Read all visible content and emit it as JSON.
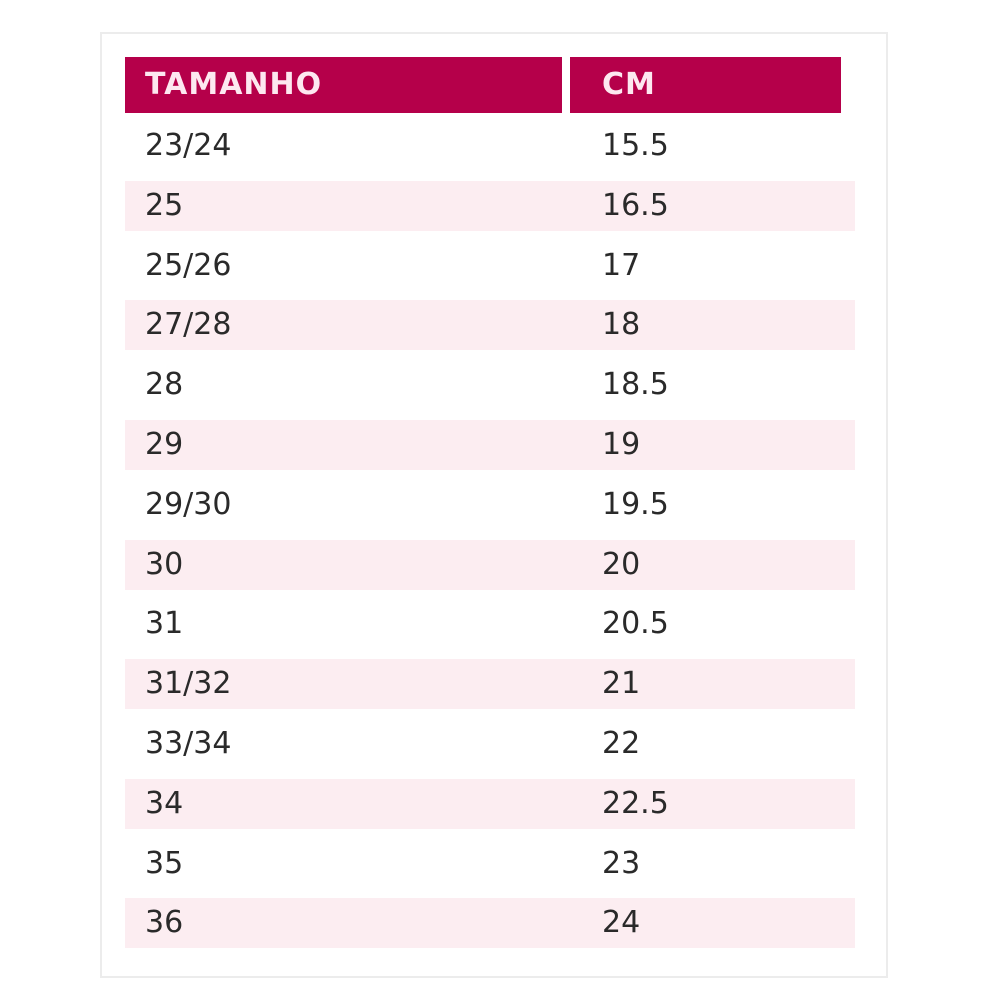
{
  "colors": {
    "header": "#b5004a",
    "stripe": "#fcedf1"
  },
  "headers": [
    "TAMANHO",
    "CM"
  ],
  "rows": [
    [
      "23/24",
      "15.5"
    ],
    [
      "25",
      "16.5"
    ],
    [
      "25/26",
      "17"
    ],
    [
      "27/28",
      "18"
    ],
    [
      "28",
      "18.5"
    ],
    [
      "29",
      "19"
    ],
    [
      "29/30",
      "19.5"
    ],
    [
      "30",
      "20"
    ],
    [
      "31",
      "20.5"
    ],
    [
      "31/32",
      "21"
    ],
    [
      "33/34",
      "22"
    ],
    [
      "34",
      "22.5"
    ],
    [
      "35",
      "23"
    ],
    [
      "36",
      "24"
    ]
  ]
}
